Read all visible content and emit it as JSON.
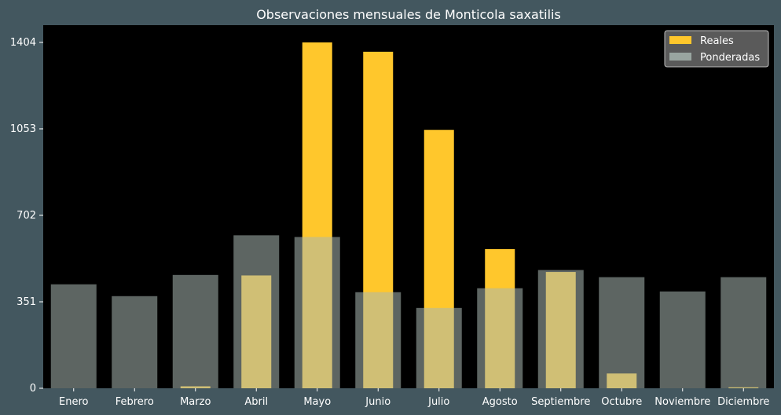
{
  "chart_data": {
    "type": "bar",
    "title": "Observaciones mensuales de Monticola saxatilis",
    "xlabel": "",
    "ylabel": "",
    "categories": [
      "Enero",
      "Febrero",
      "Marzo",
      "Abril",
      "Mayo",
      "Junio",
      "Julio",
      "Agosto",
      "Septiembre",
      "Octubre",
      "Noviembre",
      "Diciembre"
    ],
    "yticks": [
      0,
      351,
      702,
      1053,
      1404
    ],
    "ylim": [
      0,
      1474
    ],
    "series": [
      {
        "name": "Reales",
        "color": "#ffc72c",
        "values": [
          0,
          0,
          8,
          458,
          1404,
          1366,
          1049,
          565,
          472,
          60,
          0,
          4
        ]
      },
      {
        "name": "Ponderadas",
        "color": "#a9b8b2",
        "opacity": 0.55,
        "values": [
          422,
          374,
          460,
          621,
          614,
          390,
          326,
          406,
          480,
          451,
          393,
          451
        ]
      }
    ],
    "legend": "top-right",
    "grid": false,
    "colors": {
      "background": "#43575f",
      "plot_area": "#000000"
    }
  }
}
